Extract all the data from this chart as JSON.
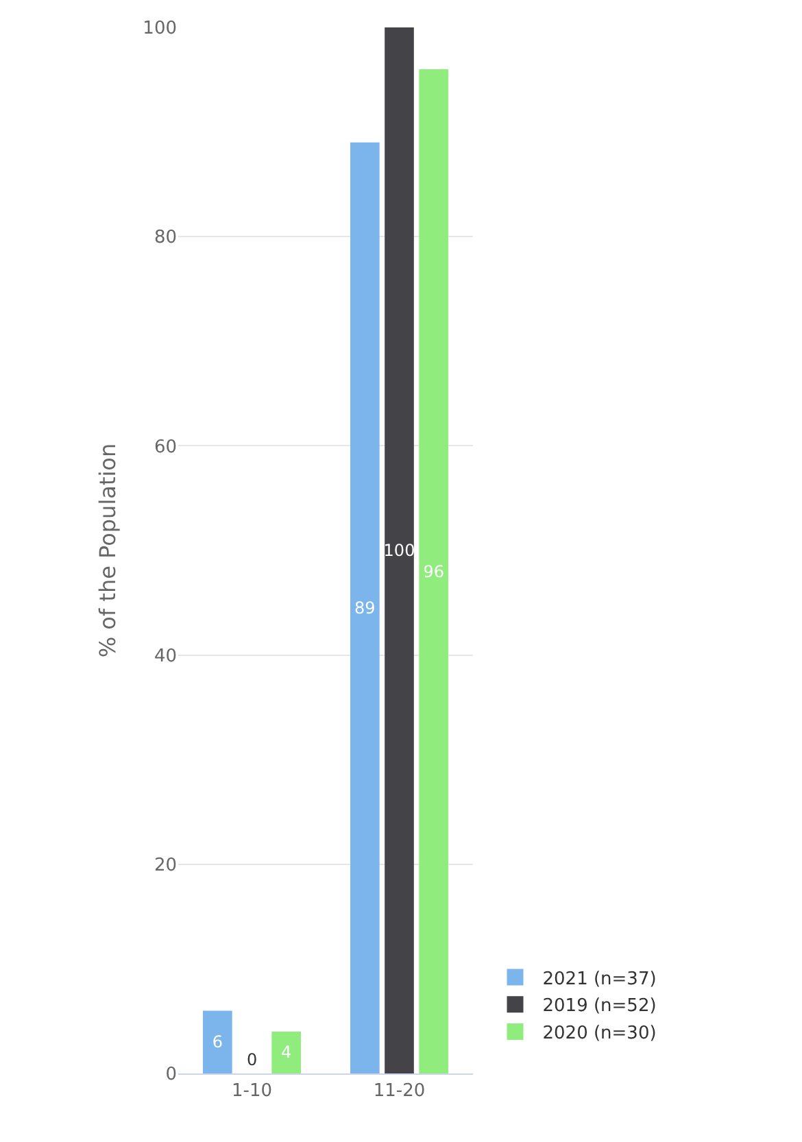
{
  "chart_data": {
    "type": "bar",
    "ylabel": "% of the Population",
    "categories": [
      "1-10",
      "11-20"
    ],
    "series": [
      {
        "name": "2021 (n=37)",
        "color": "#7cb5ec",
        "values": [
          6,
          89
        ]
      },
      {
        "name": "2019 (n=52)",
        "color": "#434348",
        "values": [
          0,
          100
        ]
      },
      {
        "name": "2020 (n=30)",
        "color": "#90ed7d",
        "values": [
          4,
          96
        ]
      }
    ],
    "ylim": [
      0,
      100
    ],
    "yticks": [
      0,
      20,
      40,
      60,
      80,
      100
    ],
    "grid": "y",
    "legend": "bottom right",
    "data_labels": true
  }
}
